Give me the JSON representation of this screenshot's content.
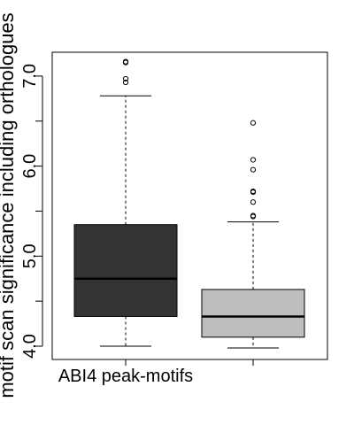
{
  "chart_data": {
    "type": "boxplot",
    "title": "",
    "xlabel": "",
    "ylabel": "motif scan significance including orthologues",
    "ylim": [
      3.85,
      7.3
    ],
    "y_ticks": [
      4.0,
      5.0,
      6.0,
      7.0
    ],
    "y_tick_labels": [
      "4.0",
      "5.0",
      "6.0",
      "7.0"
    ],
    "grid": false,
    "legend": "none",
    "categories": [
      "ABI4 peak-motifs",
      ""
    ],
    "boxes": [
      {
        "label": "ABI4 peak-motifs",
        "fill": "#333333",
        "whisker_low": 4.0,
        "q1": 4.33,
        "median": 4.75,
        "q3": 5.35,
        "whisker_high": 6.78,
        "outliers": [
          6.93,
          6.97,
          7.15,
          7.16
        ]
      },
      {
        "label": "",
        "fill": "#bebebe",
        "whisker_low": 3.98,
        "q1": 4.1,
        "median": 4.33,
        "q3": 4.63,
        "whisker_high": 5.38,
        "outliers": [
          5.44,
          5.45,
          5.6,
          5.71,
          5.72,
          5.96,
          6.07,
          6.48
        ]
      }
    ]
  }
}
